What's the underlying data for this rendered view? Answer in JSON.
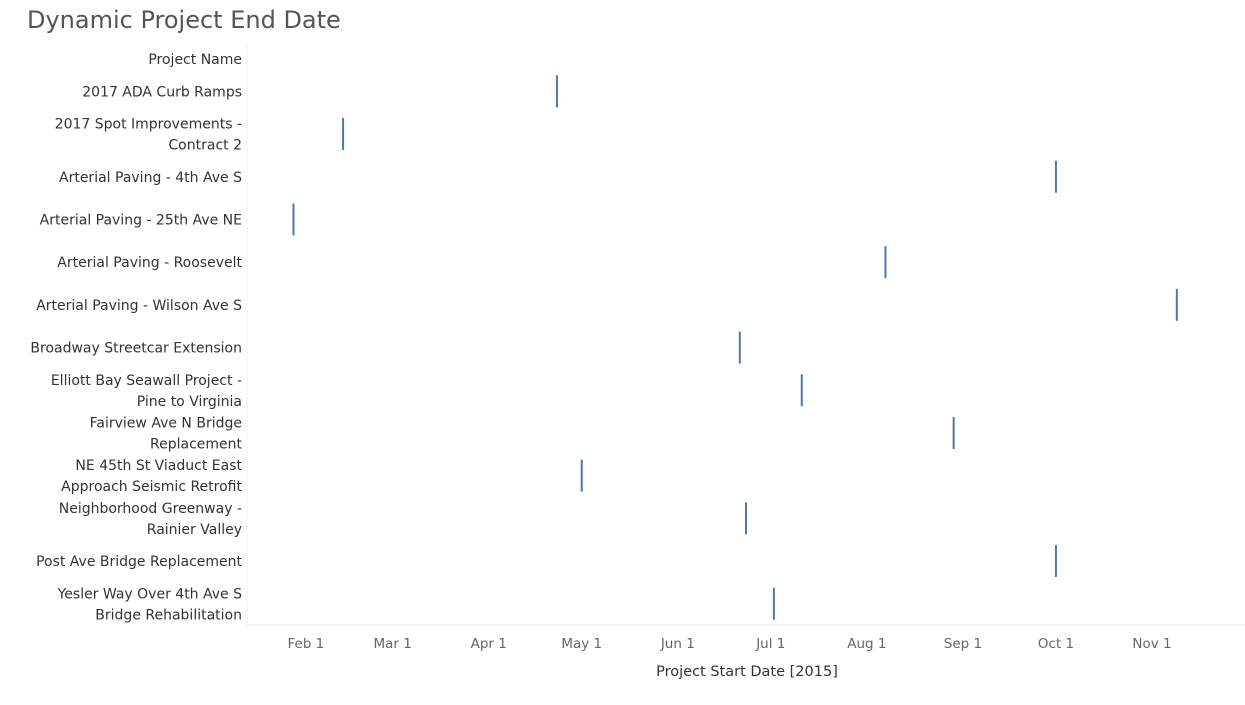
{
  "chart_data": {
    "type": "gantt",
    "title": "Dynamic Project End Date",
    "ylabel": "Project Name",
    "xlabel": "Project Start Date [2015]",
    "x_ticks": [
      "Feb 1",
      "Mar 1",
      "Apr 1",
      "May 1",
      "Jun 1",
      "Jul 1",
      "Aug 1",
      "Sep 1",
      "Oct 1",
      "Nov 1"
    ],
    "x_tick_dates": [
      "2015-02-01",
      "2015-03-01",
      "2015-04-01",
      "2015-05-01",
      "2015-06-01",
      "2015-07-01",
      "2015-08-01",
      "2015-09-01",
      "2015-10-01",
      "2015-11-01"
    ],
    "xlim": [
      "2015-01-13",
      "2015-12-01"
    ],
    "grid": false,
    "mark_color": "#4e79a7",
    "rows": [
      {
        "name": [
          "2017 ADA Curb Ramps"
        ],
        "start": "2015-04-23"
      },
      {
        "name": [
          "2017 Spot Improvements -",
          "Contract 2"
        ],
        "start": "2015-02-13"
      },
      {
        "name": [
          "Arterial Paving - 4th Ave S"
        ],
        "start": "2015-10-01"
      },
      {
        "name": [
          "Arterial Paving - 25th Ave NE"
        ],
        "start": "2015-01-28"
      },
      {
        "name": [
          "Arterial Paving - Roosevelt"
        ],
        "start": "2015-08-07"
      },
      {
        "name": [
          "Arterial Paving - Wilson Ave S"
        ],
        "start": "2015-11-09"
      },
      {
        "name": [
          "Broadway Streetcar Extension"
        ],
        "start": "2015-06-21"
      },
      {
        "name": [
          "Elliott Bay Seawall Project -",
          "Pine to Virginia"
        ],
        "start": "2015-07-11"
      },
      {
        "name": [
          "Fairview Ave N Bridge",
          "Replacement"
        ],
        "start": "2015-08-29"
      },
      {
        "name": [
          "NE 45th St Viaduct East",
          "Approach Seismic Retrofit"
        ],
        "start": "2015-05-01"
      },
      {
        "name": [
          "Neighborhood Greenway -",
          "Rainier Valley"
        ],
        "start": "2015-06-23"
      },
      {
        "name": [
          "Post Ave Bridge Replacement"
        ],
        "start": "2015-10-01"
      },
      {
        "name": [
          "Yesler Way Over 4th Ave S",
          "Bridge Rehabilitation"
        ],
        "start": "2015-07-02"
      }
    ]
  }
}
